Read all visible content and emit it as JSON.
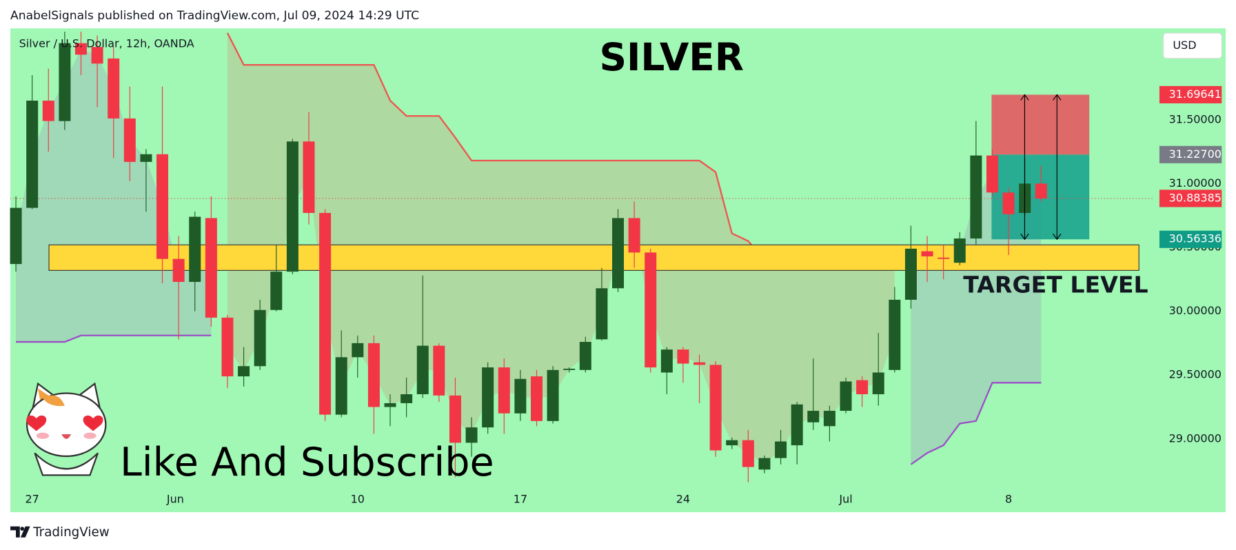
{
  "chart_data": {
    "type": "candlestick",
    "publisher": "AnabelSignals published on TradingView.com, Jul 09, 2024 14:29 UTC",
    "symbol": "Silver / U.S. Dollar, 12h, OANDA",
    "title": "SILVER",
    "currency": "USD",
    "brand": "TradingView",
    "annotations": {
      "target": "TARGET LEVEL",
      "cta": "Like And Subscribe"
    },
    "target_zone": [
      30.32,
      30.52
    ],
    "up_color": "#1e5b27",
    "down_color": "#f23645",
    "open": [
      30.37,
      30.81,
      31.65,
      31.49,
      32.1,
      32.07,
      31.98,
      31.51,
      31.17,
      31.23,
      30.41,
      30.23,
      30.73,
      29.95,
      29.49,
      29.57,
      30.01,
      30.31,
      31.33,
      30.77,
      29.19,
      29.64,
      29.75,
      29.25,
      29.28,
      29.35,
      29.73,
      29.34,
      28.97,
      29.09,
      29.56,
      29.2,
      29.49,
      29.14,
      29.54,
      29.54,
      29.78,
      30.18,
      30.73,
      30.46,
      29.52,
      29.7,
      29.6,
      29.58,
      28.95,
      28.99,
      28.76,
      28.85,
      28.95,
      29.13,
      29.1,
      29.22,
      29.46,
      29.35,
      29.54,
      30.09,
      30.47,
      30.42,
      30.38,
      30.57,
      31.22,
      30.93,
      30.77,
      31.0
    ],
    "high": [
      30.9,
      31.85,
      31.9,
      32.19,
      32.19,
      32.16,
      32.07,
      31.76,
      31.27,
      31.76,
      30.59,
      30.78,
      30.9,
      29.97,
      29.72,
      30.09,
      30.52,
      31.35,
      31.56,
      30.8,
      29.85,
      29.81,
      29.81,
      29.35,
      29.48,
      30.28,
      29.75,
      29.48,
      29.17,
      29.6,
      29.63,
      29.54,
      29.54,
      29.57,
      29.56,
      29.8,
      30.34,
      30.8,
      30.86,
      30.49,
      29.72,
      29.72,
      29.66,
      29.61,
      29.01,
      29.07,
      28.87,
      29.07,
      29.29,
      29.63,
      29.26,
      29.48,
      29.49,
      29.83,
      30.19,
      30.67,
      30.59,
      30.52,
      30.62,
      31.49,
      31.27,
      30.97,
      31.2,
      31.14
    ],
    "low": [
      30.31,
      30.8,
      31.25,
      31.42,
      31.85,
      31.6,
      31.2,
      31.02,
      30.78,
      30.22,
      29.78,
      30.0,
      29.88,
      29.4,
      29.41,
      29.54,
      30.0,
      30.29,
      30.68,
      29.14,
      29.17,
      29.48,
      29.04,
      29.1,
      29.17,
      29.32,
      29.29,
      28.7,
      28.86,
      29.04,
      29.04,
      29.14,
      29.1,
      29.12,
      29.52,
      29.52,
      29.77,
      30.15,
      30.34,
      29.52,
      29.35,
      29.44,
      29.28,
      28.86,
      28.92,
      28.66,
      28.73,
      28.8,
      28.8,
      29.07,
      28.98,
      29.2,
      29.25,
      29.26,
      29.52,
      30.02,
      30.23,
      30.25,
      30.36,
      30.52,
      30.9,
      30.44,
      30.74,
      30.86
    ],
    "close": [
      30.81,
      31.65,
      31.49,
      32.1,
      32.01,
      31.94,
      31.51,
      31.17,
      31.23,
      30.41,
      30.23,
      30.74,
      29.95,
      29.49,
      29.57,
      30.01,
      30.31,
      31.33,
      30.77,
      29.19,
      29.64,
      29.75,
      29.25,
      29.28,
      29.35,
      29.73,
      29.34,
      28.97,
      29.09,
      29.56,
      29.2,
      29.47,
      29.14,
      29.54,
      29.55,
      29.76,
      30.18,
      30.73,
      30.46,
      29.56,
      29.7,
      29.59,
      29.58,
      28.91,
      28.99,
      28.78,
      28.85,
      28.98,
      29.27,
      29.22,
      29.22,
      29.45,
      29.35,
      29.52,
      30.09,
      30.49,
      30.43,
      30.41,
      30.57,
      31.22,
      30.93,
      30.76,
      31.0,
      30.88385
    ],
    "lines": [
      {
        "color": "#f0524f",
        "values": [
          null,
          null,
          null,
          null,
          null,
          null,
          null,
          null,
          null,
          null,
          null,
          null,
          null,
          32.18,
          31.93,
          31.93,
          31.93,
          31.93,
          31.93,
          31.93,
          31.93,
          31.93,
          31.93,
          31.65,
          31.53,
          31.53,
          31.53,
          31.36,
          31.18,
          31.18,
          31.18,
          31.18,
          31.18,
          31.18,
          31.18,
          31.18,
          31.18,
          31.18,
          31.18,
          31.18,
          31.18,
          31.18,
          31.18,
          31.09,
          30.61,
          30.55,
          30.4,
          30.4,
          30.4,
          30.4,
          30.4,
          30.4,
          30.4,
          30.4,
          30.4,
          null,
          null,
          null,
          null,
          null,
          null,
          null,
          null,
          null
        ]
      },
      {
        "color": "#9c4dc8",
        "values": [
          29.76,
          29.76,
          29.76,
          29.76,
          29.81,
          29.81,
          29.81,
          29.81,
          29.81,
          29.81,
          29.81,
          29.81,
          29.81,
          null,
          null,
          null,
          null,
          null,
          null,
          null,
          null,
          null,
          null,
          null,
          null,
          null,
          null,
          null,
          null,
          null,
          null,
          null,
          null,
          null,
          null,
          null,
          null,
          null,
          null,
          null,
          null,
          null,
          null,
          null,
          null,
          null,
          null,
          null,
          null,
          null,
          null,
          null,
          null,
          null,
          null,
          28.8,
          28.89,
          28.95,
          29.12,
          29.14,
          29.44,
          29.44,
          29.44,
          29.44
        ]
      }
    ],
    "last_price": 30.88385,
    "position": {
      "stop": 31.69641,
      "entry": {
        "value": 31.227,
        "label": "31.22700"
      },
      "target": 30.56336
    },
    "xlim": [
      -0.34,
      69.98
    ],
    "ylim": [
      28.426,
      32.216
    ],
    "xticks": [
      {
        "value": 1,
        "label": "27"
      },
      {
        "value": 9.8,
        "label": "Jun"
      },
      {
        "value": 21,
        "label": "10"
      },
      {
        "value": 31,
        "label": "17"
      },
      {
        "value": 41,
        "label": "24"
      },
      {
        "value": 51,
        "label": "Jul"
      },
      {
        "value": 61,
        "label": "8"
      }
    ],
    "yticks": [
      {
        "value": 31.5,
        "label": "31.50000"
      },
      {
        "value": 31,
        "label": "31.00000"
      },
      {
        "value": 30.5,
        "label": "30.50000"
      },
      {
        "value": 30,
        "label": "30.00000"
      },
      {
        "value": 29.5,
        "label": "29.50000"
      },
      {
        "value": 29,
        "label": "29.00000"
      }
    ]
  }
}
